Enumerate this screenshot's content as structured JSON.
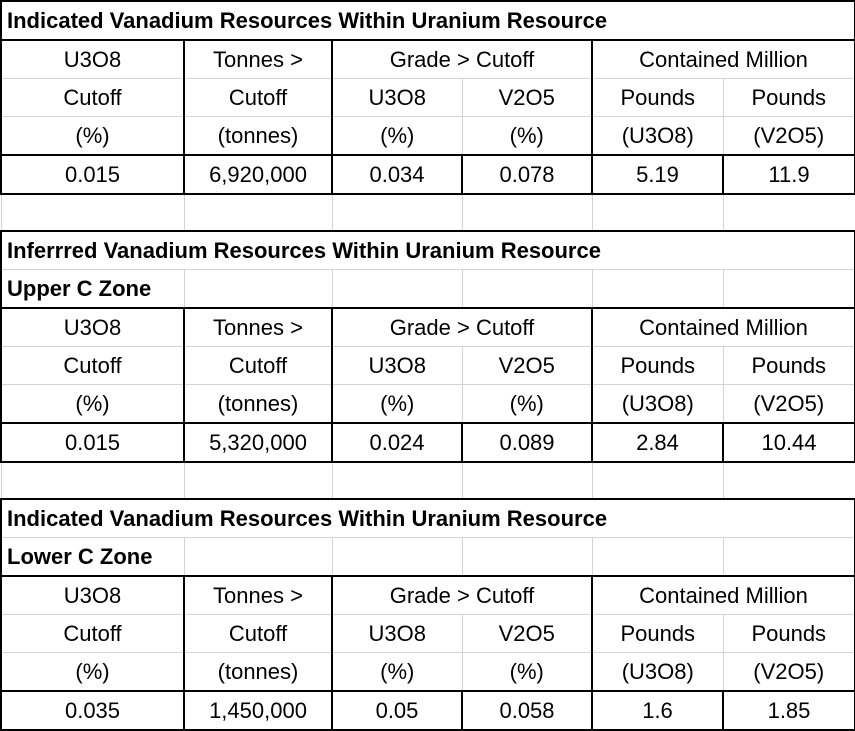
{
  "sections": [
    {
      "title": "Indicated Vanadium Resources Within Uranium Resource",
      "subtitle": "",
      "header": {
        "row1": [
          "U3O8",
          "Tonnes >",
          "Grade > Cutoff",
          "Contained Million"
        ],
        "row2": [
          "Cutoff",
          "Cutoff",
          "U3O8",
          "V2O5",
          "Pounds",
          "Pounds"
        ],
        "row3": [
          "(%)",
          "(tonnes)",
          "(%)",
          "(%)",
          "(U3O8)",
          "(V2O5)"
        ]
      },
      "row": [
        "0.015",
        "6,920,000",
        "0.034",
        "0.078",
        "5.19",
        "11.9"
      ]
    },
    {
      "title": "Inferrred Vanadium Resources Within Uranium Resource",
      "subtitle": "Upper C Zone",
      "header": {
        "row1": [
          "U3O8",
          "Tonnes >",
          "Grade > Cutoff",
          "Contained Million"
        ],
        "row2": [
          "Cutoff",
          "Cutoff",
          "U3O8",
          "V2O5",
          "Pounds",
          "Pounds"
        ],
        "row3": [
          "(%)",
          "(tonnes)",
          "(%)",
          "(%)",
          "(U3O8)",
          "(V2O5)"
        ]
      },
      "row": [
        "0.015",
        "5,320,000",
        "0.024",
        "0.089",
        "2.84",
        "10.44"
      ]
    },
    {
      "title": "Indicated Vanadium Resources Within Uranium Resource",
      "subtitle": "Lower C Zone",
      "header": {
        "row1": [
          "U3O8",
          "Tonnes >",
          "Grade > Cutoff",
          "Contained Million"
        ],
        "row2": [
          "Cutoff",
          "Cutoff",
          "U3O8",
          "V2O5",
          "Pounds",
          "Pounds"
        ],
        "row3": [
          "(%)",
          "(tonnes)",
          "(%)",
          "(%)",
          "(U3O8)",
          "(V2O5)"
        ]
      },
      "row": [
        "0.035",
        "1,450,000",
        "0.05",
        "0.058",
        "1.6",
        "1.85"
      ]
    }
  ]
}
